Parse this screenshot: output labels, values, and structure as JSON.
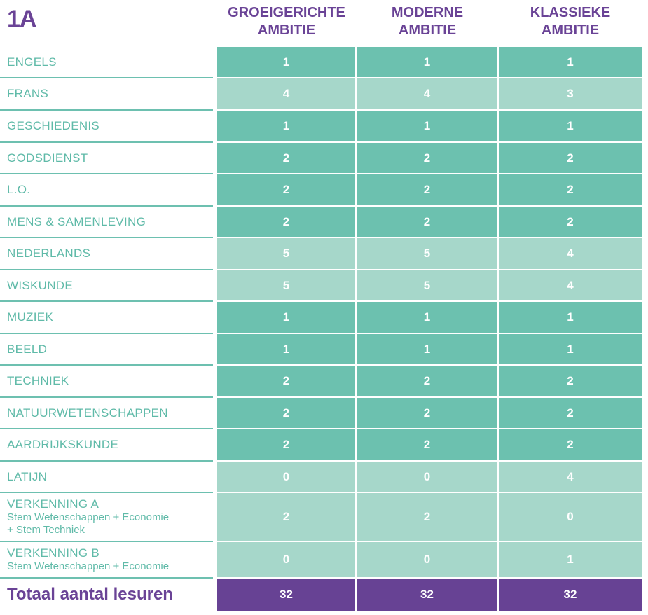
{
  "title": "1A",
  "columns": [
    {
      "line1": "GROEIGERICHTE",
      "line2": "AMBITIE"
    },
    {
      "line1": "MODERNE",
      "line2": "AMBITIE"
    },
    {
      "line1": "KLASSIEKE",
      "line2": "AMBITIE"
    }
  ],
  "rows": [
    {
      "label": "ENGELS",
      "sub": "",
      "values": [
        "1",
        "1",
        "1"
      ],
      "shade": "dark"
    },
    {
      "label": "FRANS",
      "sub": "",
      "values": [
        "4",
        "4",
        "3"
      ],
      "shade": "light"
    },
    {
      "label": "GESCHIEDENIS",
      "sub": "",
      "values": [
        "1",
        "1",
        "1"
      ],
      "shade": "dark"
    },
    {
      "label": "GODSDIENST",
      "sub": "",
      "values": [
        "2",
        "2",
        "2"
      ],
      "shade": "dark"
    },
    {
      "label": "L.O.",
      "sub": "",
      "values": [
        "2",
        "2",
        "2"
      ],
      "shade": "dark"
    },
    {
      "label": "MENS & SAMENLEVING",
      "sub": "",
      "values": [
        "2",
        "2",
        "2"
      ],
      "shade": "dark"
    },
    {
      "label": "NEDERLANDS",
      "sub": "",
      "values": [
        "5",
        "5",
        "4"
      ],
      "shade": "light"
    },
    {
      "label": "WISKUNDE",
      "sub": "",
      "values": [
        "5",
        "5",
        "4"
      ],
      "shade": "light"
    },
    {
      "label": "MUZIEK",
      "sub": "",
      "values": [
        "1",
        "1",
        "1"
      ],
      "shade": "dark"
    },
    {
      "label": "BEELD",
      "sub": "",
      "values": [
        "1",
        "1",
        "1"
      ],
      "shade": "dark"
    },
    {
      "label": "TECHNIEK",
      "sub": "",
      "values": [
        "2",
        "2",
        "2"
      ],
      "shade": "dark"
    },
    {
      "label": "NATUURWETENSCHAPPEN",
      "sub": "",
      "values": [
        "2",
        "2",
        "2"
      ],
      "shade": "dark"
    },
    {
      "label": "AARDRIJKSKUNDE",
      "sub": "",
      "values": [
        "2",
        "2",
        "2"
      ],
      "shade": "dark"
    },
    {
      "label": "LATIJN",
      "sub": "",
      "values": [
        "0",
        "0",
        "4"
      ],
      "shade": "light"
    },
    {
      "label": "VERKENNING A",
      "sub": "Stem Wetenschappen + Economie",
      "sub2": "+ Stem Techniek",
      "values": [
        "2",
        "2",
        "0"
      ],
      "shade": "light"
    },
    {
      "label": "VERKENNING B",
      "sub": "Stem Wetenschappen + Economie",
      "values": [
        "0",
        "0",
        "1"
      ],
      "shade": "light"
    }
  ],
  "total": {
    "label": "Totaal aantal lesuren",
    "values": [
      "32",
      "32",
      "32"
    ]
  },
  "colors": {
    "purple": "#674294",
    "teal_dark": "#6cc1af",
    "teal_light": "#a6d7ca",
    "teal_text": "#5fbaa8"
  }
}
